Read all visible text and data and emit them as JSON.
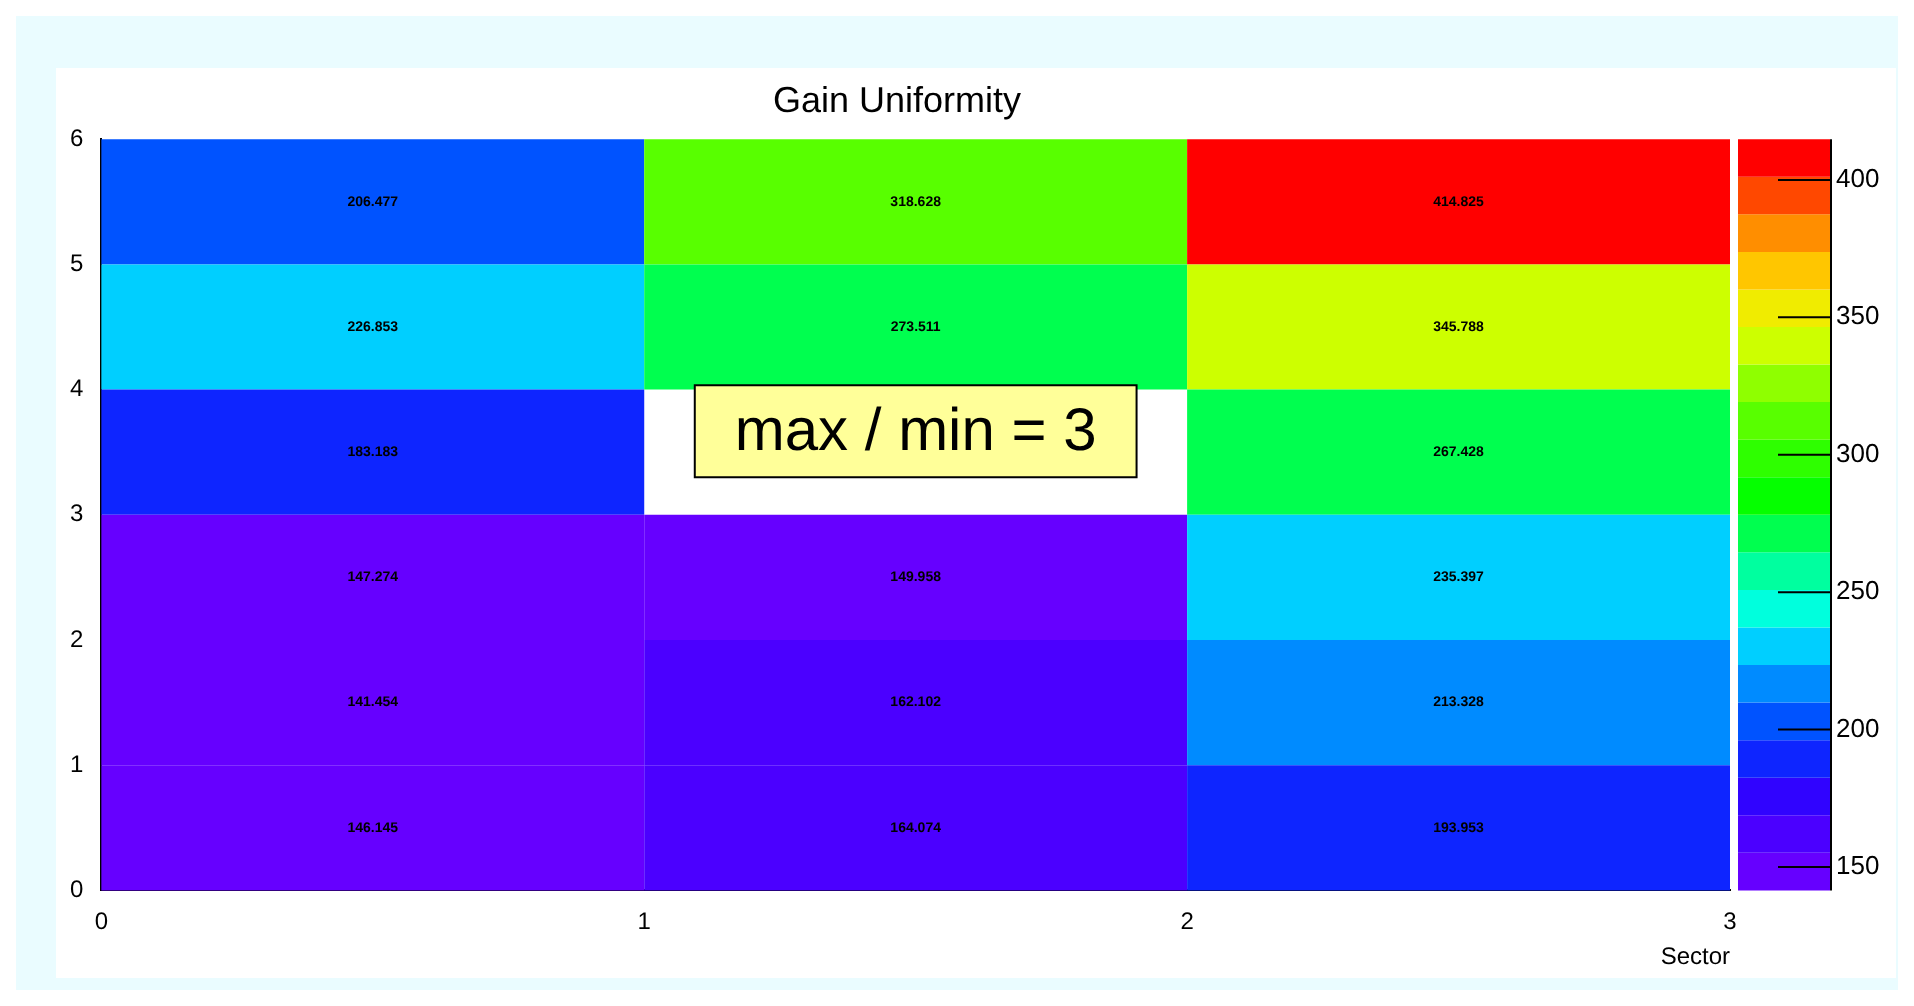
{
  "chart_data": {
    "type": "heatmap",
    "title": "Gain Uniformity",
    "xlabel": "Sector",
    "cells": [
      [
        206.477,
        318.628,
        414.825
      ],
      [
        226.853,
        273.511,
        345.788
      ],
      [
        183.183,
        null,
        267.428
      ],
      [
        147.274,
        149.958,
        235.397
      ],
      [
        141.454,
        162.102,
        213.328
      ],
      [
        146.145,
        164.074,
        193.953
      ]
    ],
    "xlim": [
      0,
      3
    ],
    "xticks": [
      0,
      1,
      2,
      3
    ],
    "ylim": [
      0,
      6
    ],
    "yticks": [
      0,
      1,
      2,
      3,
      4,
      5,
      6
    ],
    "clim": [
      141.454,
      414.825
    ],
    "cticks": [
      150,
      200,
      250,
      300,
      350,
      400
    ],
    "data_labels": true,
    "annotations": [
      "max / min = 3"
    ]
  }
}
